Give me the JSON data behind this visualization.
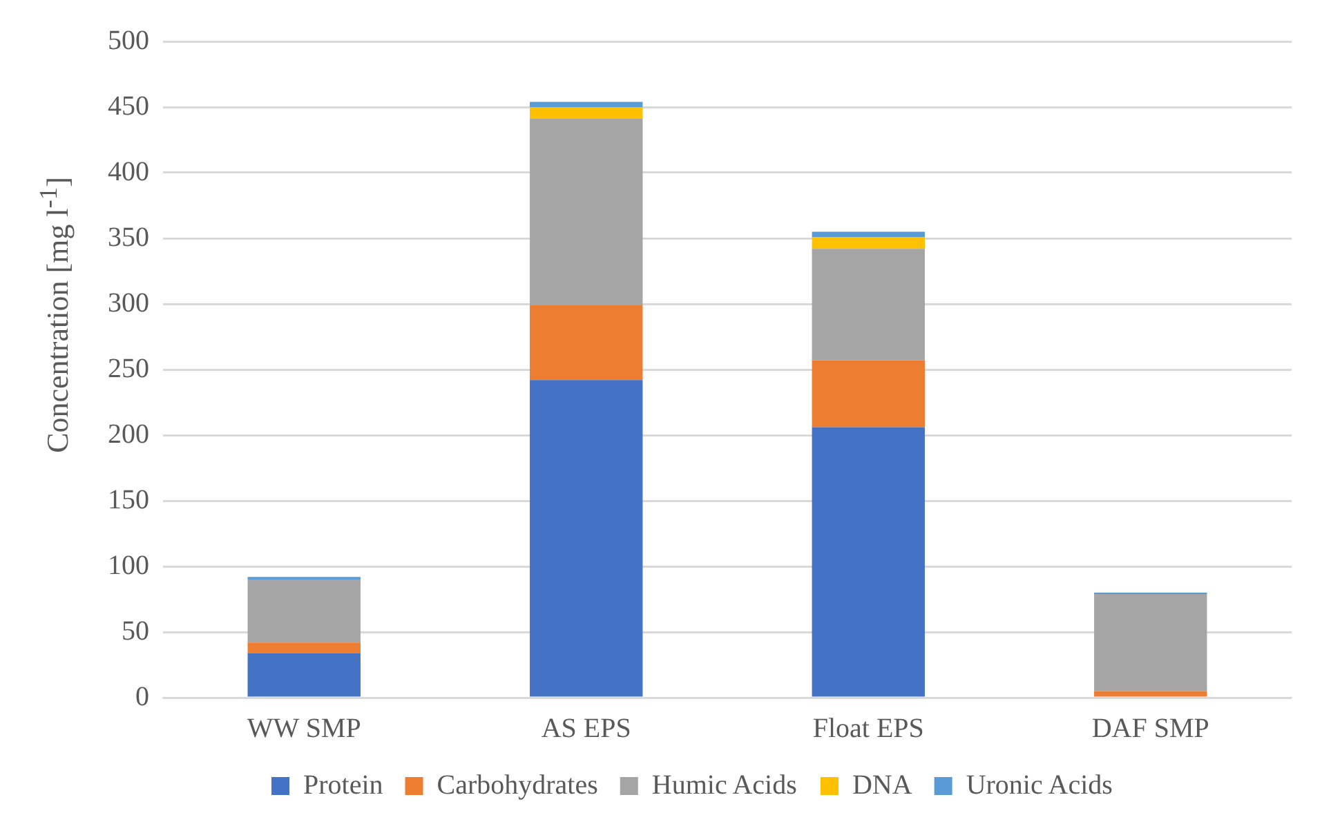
{
  "chart_data": {
    "type": "bar",
    "stacked": true,
    "ylabel": "Concentration [mg l$^{-1}$]",
    "categories": [
      "WW SMP",
      "AS EPS",
      "Float EPS",
      "DAF SMP"
    ],
    "series": [
      {
        "name": "Protein",
        "color": "#4472c4",
        "values": [
          34,
          242,
          206,
          0
        ]
      },
      {
        "name": "Carbohydrates",
        "color": "#ed7d31",
        "values": [
          8,
          57,
          51,
          5
        ]
      },
      {
        "name": "Humic Acids",
        "color": "#a5a5a5",
        "values": [
          48,
          142,
          85,
          74
        ]
      },
      {
        "name": "DNA",
        "color": "#ffc000",
        "values": [
          0,
          9,
          9,
          0
        ]
      },
      {
        "name": "Uronic Acids",
        "color": "#5b9bd5",
        "values": [
          2,
          4,
          4,
          1
        ]
      }
    ],
    "ylim": [
      0,
      500
    ],
    "yticks": [
      0,
      50,
      100,
      150,
      200,
      250,
      300,
      350,
      400,
      450,
      500
    ],
    "grid": "y",
    "legend": "bottom"
  }
}
